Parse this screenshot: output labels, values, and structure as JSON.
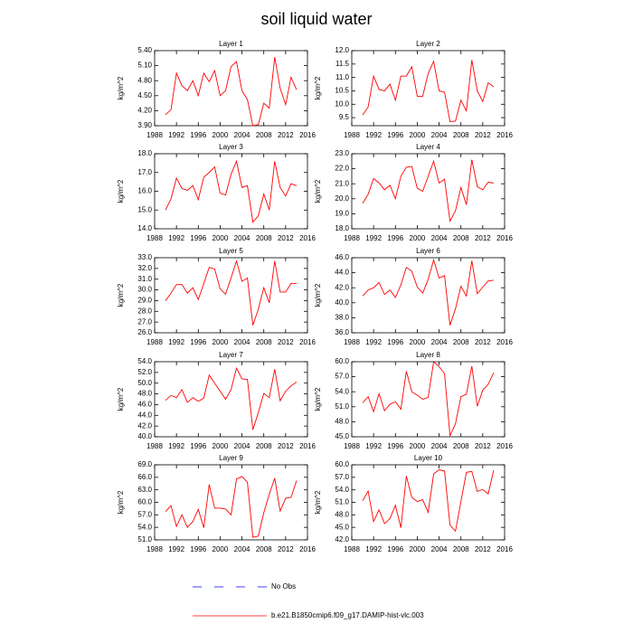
{
  "title": "soil liquid water",
  "legend": [
    {
      "label": "No Obs",
      "color": "#0000ff",
      "dash": true
    },
    {
      "label": "b.e21.B1850cmip6.f09_g17.DAMIP-hist-vlc.003",
      "color": "#ff0000",
      "dash": false
    }
  ],
  "chart_data": [
    {
      "type": "line",
      "title": "Layer 1",
      "y_label": "kg/m^2",
      "x": [
        1990,
        1991,
        1992,
        1993,
        1994,
        1995,
        1996,
        1997,
        1998,
        1999,
        2000,
        2001,
        2002,
        2003,
        2004,
        2005,
        2006,
        2007,
        2008,
        2009,
        2010,
        2011,
        2012,
        2013,
        2014
      ],
      "series": [
        {
          "color": "#ff0000",
          "values": [
            4.12,
            4.22,
            4.95,
            4.7,
            4.6,
            4.8,
            4.5,
            4.95,
            4.78,
            5.0,
            4.5,
            4.6,
            5.08,
            5.18,
            4.6,
            4.42,
            3.9,
            3.92,
            4.35,
            4.25,
            5.27,
            4.65,
            4.32,
            4.87,
            4.62
          ]
        }
      ],
      "xlim": [
        1988,
        2016
      ],
      "xticks": [
        1988,
        1992,
        1996,
        2000,
        2004,
        2008,
        2012,
        2016
      ],
      "ylim": [
        3.9,
        5.4
      ],
      "yticks": [
        {
          "value": 3.9,
          "label": "3.90"
        },
        {
          "value": 4.2,
          "label": "4.20"
        },
        {
          "value": 4.5,
          "label": "4.50"
        },
        {
          "value": 4.8,
          "label": "4.80"
        },
        {
          "value": 5.1,
          "label": "5.10"
        },
        {
          "value": 5.4,
          "label": "5.40"
        }
      ]
    },
    {
      "type": "line",
      "title": "Layer 2",
      "y_label": "kg/m^2",
      "x": [
        1990,
        1991,
        1992,
        1993,
        1994,
        1995,
        1996,
        1997,
        1998,
        1999,
        2000,
        2001,
        2002,
        2003,
        2004,
        2005,
        2006,
        2007,
        2008,
        2009,
        2010,
        2011,
        2012,
        2013,
        2014
      ],
      "series": [
        {
          "color": "#ff0000",
          "values": [
            9.6,
            9.9,
            11.05,
            10.55,
            10.5,
            10.75,
            10.15,
            11.05,
            11.05,
            11.4,
            10.3,
            10.3,
            11.15,
            11.6,
            10.5,
            10.45,
            9.35,
            9.37,
            10.15,
            9.75,
            11.65,
            10.5,
            10.1,
            10.8,
            10.65
          ]
        }
      ],
      "xlim": [
        1988,
        2016
      ],
      "xticks": [
        1988,
        1992,
        1996,
        2000,
        2004,
        2008,
        2012,
        2016
      ],
      "ylim": [
        9.2,
        12.0
      ],
      "yticks": [
        9.5,
        {
          "value": 10,
          "label": "10.0"
        },
        10.5,
        {
          "value": 11,
          "label": "11.0"
        },
        11.5,
        {
          "value": 12,
          "label": "12.0"
        }
      ]
    },
    {
      "type": "line",
      "title": "Layer 3",
      "y_label": "kg/m^2",
      "x": [
        1990,
        1991,
        1992,
        1993,
        1994,
        1995,
        1996,
        1997,
        1998,
        1999,
        2000,
        2001,
        2002,
        2003,
        2004,
        2005,
        2006,
        2007,
        2008,
        2009,
        2010,
        2011,
        2012,
        2013,
        2014
      ],
      "series": [
        {
          "color": "#ff0000",
          "values": [
            15.0,
            15.6,
            16.7,
            16.15,
            16.05,
            16.3,
            15.55,
            16.75,
            17.0,
            17.3,
            15.9,
            15.8,
            16.9,
            17.6,
            16.2,
            16.3,
            14.35,
            14.7,
            15.85,
            15.0,
            17.6,
            16.2,
            15.75,
            16.4,
            16.3
          ]
        }
      ],
      "xlim": [
        1988,
        2016
      ],
      "xticks": [
        1988,
        1992,
        1996,
        2000,
        2004,
        2008,
        2012,
        2016
      ],
      "ylim": [
        14,
        18
      ],
      "yticks": [
        {
          "value": 14,
          "label": "14.0"
        },
        {
          "value": 15,
          "label": "15.0"
        },
        {
          "value": 16,
          "label": "16.0"
        },
        {
          "value": 17,
          "label": "17.0"
        },
        {
          "value": 18,
          "label": "18.0"
        }
      ]
    },
    {
      "type": "line",
      "title": "Layer 4",
      "y_label": "kg/m^2",
      "x": [
        1990,
        1991,
        1992,
        1993,
        1994,
        1995,
        1996,
        1997,
        1998,
        1999,
        2000,
        2001,
        2002,
        2003,
        2004,
        2005,
        2006,
        2007,
        2008,
        2009,
        2010,
        2011,
        2012,
        2013,
        2014
      ],
      "series": [
        {
          "color": "#ff0000",
          "values": [
            19.7,
            20.3,
            21.35,
            21.05,
            20.6,
            20.9,
            20.0,
            21.5,
            22.1,
            22.15,
            20.7,
            20.5,
            21.5,
            22.5,
            21.05,
            21.3,
            18.5,
            19.2,
            20.75,
            19.6,
            22.6,
            20.8,
            20.6,
            21.1,
            21.05
          ]
        }
      ],
      "xlim": [
        1988,
        2016
      ],
      "xticks": [
        1988,
        1992,
        1996,
        2000,
        2004,
        2008,
        2012,
        2016
      ],
      "ylim": [
        18,
        23
      ],
      "yticks": [
        {
          "value": 18,
          "label": "18.0"
        },
        {
          "value": 19,
          "label": "19.0"
        },
        {
          "value": 20,
          "label": "20.0"
        },
        {
          "value": 21,
          "label": "21.0"
        },
        {
          "value": 22,
          "label": "22.0"
        },
        {
          "value": 23,
          "label": "23.0"
        }
      ]
    },
    {
      "type": "line",
      "title": "Layer 5",
      "y_label": "kg/m^2",
      "x": [
        1990,
        1991,
        1992,
        1993,
        1994,
        1995,
        1996,
        1997,
        1998,
        1999,
        2000,
        2001,
        2002,
        2003,
        2004,
        2005,
        2006,
        2007,
        2008,
        2009,
        2010,
        2011,
        2012,
        2013,
        2014
      ],
      "series": [
        {
          "color": "#ff0000",
          "values": [
            29.0,
            29.7,
            30.5,
            30.5,
            29.7,
            30.2,
            29.1,
            30.6,
            32.1,
            31.95,
            30.1,
            29.6,
            31.1,
            32.7,
            30.8,
            31.1,
            26.7,
            28.2,
            30.2,
            28.8,
            32.7,
            29.8,
            29.8,
            30.6,
            30.6
          ]
        }
      ],
      "xlim": [
        1988,
        2016
      ],
      "xticks": [
        1988,
        1992,
        1996,
        2000,
        2004,
        2008,
        2012,
        2016
      ],
      "ylim": [
        26,
        33
      ],
      "yticks": [
        {
          "value": 26,
          "label": "26.0"
        },
        {
          "value": 27,
          "label": "27.0"
        },
        {
          "value": 28,
          "label": "28.0"
        },
        {
          "value": 29,
          "label": "29.0"
        },
        {
          "value": 30,
          "label": "30.0"
        },
        {
          "value": 31,
          "label": "31.0"
        },
        {
          "value": 32,
          "label": "32.0"
        },
        {
          "value": 33,
          "label": "33.0"
        }
      ]
    },
    {
      "type": "line",
      "title": "Layer 6",
      "y_label": "kg/m^2",
      "x": [
        1990,
        1991,
        1992,
        1993,
        1994,
        1995,
        1996,
        1997,
        1998,
        1999,
        2000,
        2001,
        2002,
        2003,
        2004,
        2005,
        2006,
        2007,
        2008,
        2009,
        2010,
        2011,
        2012,
        2013,
        2014
      ],
      "series": [
        {
          "color": "#ff0000",
          "values": [
            40.9,
            41.7,
            42.0,
            42.7,
            41.1,
            41.7,
            40.7,
            42.4,
            44.7,
            44.2,
            42.1,
            41.3,
            43.1,
            45.7,
            43.3,
            43.6,
            37.0,
            39.2,
            42.2,
            40.9,
            45.6,
            41.2,
            42.1,
            42.9,
            43.0
          ]
        }
      ],
      "xlim": [
        1988,
        2016
      ],
      "xticks": [
        1988,
        1992,
        1996,
        2000,
        2004,
        2008,
        2012,
        2016
      ],
      "ylim": [
        36,
        46
      ],
      "yticks": [
        {
          "value": 36,
          "label": "36.0"
        },
        {
          "value": 38,
          "label": "38.0"
        },
        {
          "value": 40,
          "label": "40.0"
        },
        {
          "value": 42,
          "label": "42.0"
        },
        {
          "value": 44,
          "label": "44.0"
        },
        {
          "value": 46,
          "label": "46.0"
        }
      ]
    },
    {
      "type": "line",
      "title": "Layer 7",
      "y_label": "kg/m^2",
      "x": [
        1990,
        1991,
        1992,
        1993,
        1994,
        1995,
        1996,
        1997,
        1998,
        1999,
        2000,
        2001,
        2002,
        2003,
        2004,
        2005,
        2006,
        2007,
        2008,
        2009,
        2010,
        2011,
        2012,
        2013,
        2014
      ],
      "series": [
        {
          "color": "#ff0000",
          "values": [
            46.8,
            47.7,
            47.3,
            48.8,
            46.4,
            47.3,
            46.6,
            47.2,
            51.5,
            50.0,
            48.5,
            47.0,
            48.8,
            52.8,
            50.8,
            50.7,
            41.3,
            44.5,
            48.1,
            47.3,
            52.6,
            46.7,
            48.5,
            49.5,
            50.2
          ]
        }
      ],
      "xlim": [
        1988,
        2016
      ],
      "xticks": [
        1988,
        1992,
        1996,
        2000,
        2004,
        2008,
        2012,
        2016
      ],
      "ylim": [
        40,
        54
      ],
      "yticks": [
        {
          "value": 40,
          "label": "40.0"
        },
        {
          "value": 42,
          "label": "42.0"
        },
        {
          "value": 44,
          "label": "44.0"
        },
        {
          "value": 46,
          "label": "46.0"
        },
        {
          "value": 48,
          "label": "48.0"
        },
        {
          "value": 50,
          "label": "50.0"
        },
        {
          "value": 52,
          "label": "52.0"
        },
        {
          "value": 54,
          "label": "54.0"
        }
      ]
    },
    {
      "type": "line",
      "title": "Layer 8",
      "y_label": "kg/m^2",
      "x": [
        1990,
        1991,
        1992,
        1993,
        1994,
        1995,
        1996,
        1997,
        1998,
        1999,
        2000,
        2001,
        2002,
        2003,
        2004,
        2005,
        2006,
        2007,
        2008,
        2009,
        2010,
        2011,
        2012,
        2013,
        2014
      ],
      "series": [
        {
          "color": "#ff0000",
          "values": [
            51.8,
            53.0,
            50.0,
            53.6,
            50.2,
            51.5,
            52.0,
            50.5,
            58.1,
            54.0,
            53.3,
            52.5,
            52.9,
            60.0,
            59.0,
            57.6,
            45.2,
            47.6,
            53.0,
            53.5,
            59.1,
            51.1,
            54.3,
            55.5,
            57.8
          ]
        }
      ],
      "xlim": [
        1988,
        2016
      ],
      "xticks": [
        1988,
        1992,
        1996,
        2000,
        2004,
        2008,
        2012,
        2016
      ],
      "ylim": [
        45,
        60
      ],
      "yticks": [
        {
          "value": 45,
          "label": "45.0"
        },
        {
          "value": 48,
          "label": "48.0"
        },
        {
          "value": 51,
          "label": "51.0"
        },
        {
          "value": 54,
          "label": "54.0"
        },
        {
          "value": 57,
          "label": "57.0"
        },
        {
          "value": 60,
          "label": "60.0"
        }
      ]
    },
    {
      "type": "line",
      "title": "Layer 9",
      "y_label": "kg/m^2",
      "x": [
        1990,
        1991,
        1992,
        1993,
        1994,
        1995,
        1996,
        1997,
        1998,
        1999,
        2000,
        2001,
        2002,
        2003,
        2004,
        2005,
        2006,
        2007,
        2008,
        2009,
        2010,
        2011,
        2012,
        2013,
        2014
      ],
      "series": [
        {
          "color": "#ff0000",
          "values": [
            57.8,
            59.2,
            54.2,
            57.0,
            54.0,
            55.4,
            58.3,
            53.9,
            64.3,
            58.6,
            58.6,
            58.4,
            57.0,
            65.6,
            66.2,
            64.8,
            51.6,
            51.9,
            57.5,
            61.9,
            65.8,
            57.9,
            61.0,
            61.2,
            65.2
          ]
        }
      ],
      "xlim": [
        1988,
        2016
      ],
      "xticks": [
        1988,
        1992,
        1996,
        2000,
        2004,
        2008,
        2012,
        2016
      ],
      "ylim": [
        51,
        69
      ],
      "yticks": [
        {
          "value": 51,
          "label": "51.0"
        },
        {
          "value": 54,
          "label": "54.0"
        },
        {
          "value": 57,
          "label": "57.0"
        },
        {
          "value": 60,
          "label": "60.0"
        },
        {
          "value": 63,
          "label": "63.0"
        },
        {
          "value": 66,
          "label": "66.0"
        },
        {
          "value": 69,
          "label": "69.0"
        }
      ]
    },
    {
      "type": "line",
      "title": "Layer 10",
      "y_label": "kg/m^2",
      "x": [
        1990,
        1991,
        1992,
        1993,
        1994,
        1995,
        1996,
        1997,
        1998,
        1999,
        2000,
        2001,
        2002,
        2003,
        2004,
        2005,
        2006,
        2007,
        2008,
        2009,
        2010,
        2011,
        2012,
        2013,
        2014
      ],
      "series": [
        {
          "color": "#ff0000",
          "values": [
            51.4,
            53.7,
            46.4,
            49.2,
            45.9,
            47.1,
            50.3,
            44.9,
            57.3,
            52.2,
            51.2,
            51.6,
            48.6,
            57.8,
            58.8,
            58.5,
            45.5,
            44.1,
            51.2,
            58.2,
            58.4,
            53.6,
            54.1,
            53.0,
            58.7
          ]
        }
      ],
      "xlim": [
        1988,
        2016
      ],
      "xticks": [
        1988,
        1992,
        1996,
        2000,
        2004,
        2008,
        2012,
        2016
      ],
      "ylim": [
        42,
        60
      ],
      "yticks": [
        {
          "value": 42,
          "label": "42.0"
        },
        {
          "value": 45,
          "label": "45.0"
        },
        {
          "value": 48,
          "label": "48.0"
        },
        {
          "value": 51,
          "label": "51.0"
        },
        {
          "value": 54,
          "label": "54.0"
        },
        {
          "value": 57,
          "label": "57.0"
        },
        {
          "value": 60,
          "label": "60.0"
        }
      ]
    }
  ]
}
